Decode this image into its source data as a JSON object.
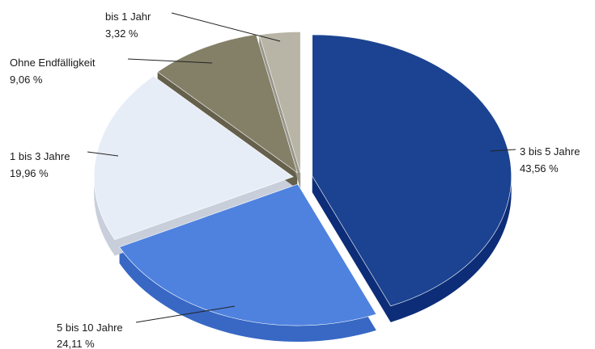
{
  "chart_data": {
    "type": "pie",
    "style": "3d-exploded",
    "slices": [
      {
        "label": "3 bis 5 Jahre",
        "value_text": "43,56 %",
        "value": 43.56,
        "color": "#1b4391",
        "side_color": "#0d2d78"
      },
      {
        "label": "5 bis 10 Jahre",
        "value_text": "24,11 %",
        "value": 24.11,
        "color": "#4f82df",
        "side_color": "#3868c4"
      },
      {
        "label": "1 bis 3 Jahre",
        "value_text": "19,96 %",
        "value": 19.96,
        "color": "#e7edf7",
        "side_color": "#c8cfdb"
      },
      {
        "label": "Ohne Endfälligkeit",
        "value_text": "9,06 %",
        "value": 9.06,
        "color": "#848068",
        "side_color": "#64604c"
      },
      {
        "label": "bis 1 Jahr",
        "value_text": "3,32 %",
        "value": 3.32,
        "color": "#b8b5a6",
        "side_color": "#98958a"
      }
    ]
  }
}
